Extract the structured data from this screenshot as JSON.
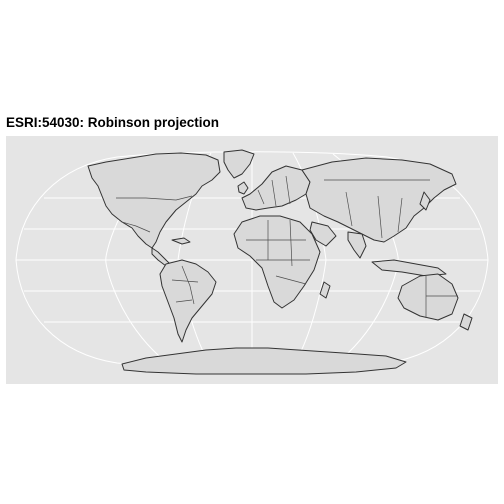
{
  "title": "ESRI:54030: Robinson projection",
  "colors": {
    "panel_background": "#e5e5e5",
    "graticule": "#ffffff",
    "land_fill": "#d9d9d9",
    "coastline": "#333333",
    "borders": "#4d4d4d"
  },
  "map": {
    "projection": "Robinson (ESRI:54030)",
    "graticule_meridians_deg": [
      -180,
      -120,
      -60,
      0,
      60,
      120,
      180
    ],
    "graticule_parallels_deg": [
      -90,
      -60,
      -30,
      0,
      30,
      60,
      90
    ]
  }
}
